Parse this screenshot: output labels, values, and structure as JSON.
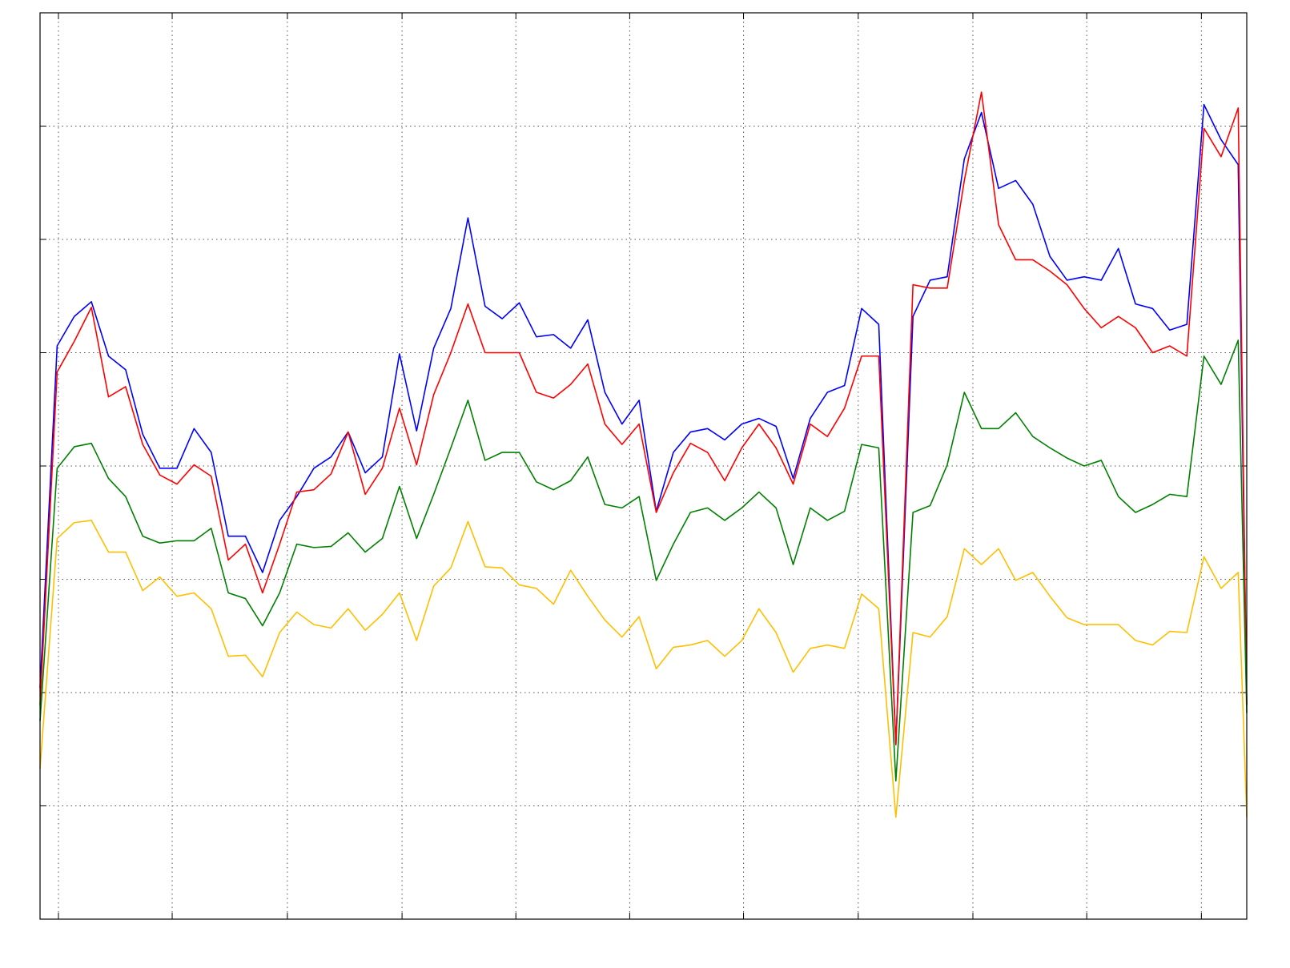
{
  "chart_data": {
    "type": "line",
    "grid": true,
    "x": [
      0,
      2,
      4,
      6,
      8,
      10,
      12,
      14,
      16,
      18,
      20,
      22,
      24,
      26,
      28,
      30,
      32,
      34,
      36,
      38,
      40,
      42,
      44,
      46,
      48,
      50,
      52,
      54,
      56,
      58,
      60,
      62,
      64,
      66,
      68,
      70,
      72,
      74,
      76,
      78,
      80,
      82,
      84,
      86,
      88,
      90,
      92,
      94,
      96,
      98,
      100,
      102,
      104,
      106,
      108,
      110,
      112,
      114,
      116,
      118,
      120,
      122,
      124,
      126,
      128,
      130,
      132,
      134,
      136,
      138,
      140,
      141
    ],
    "xlim": [
      0,
      141
    ],
    "xticks": [
      2.15,
      15.44,
      28.9,
      42.3,
      55.6,
      68.9,
      82.2,
      95.6,
      109,
      122.3,
      135.7
    ],
    "ylim": [
      0,
      8
    ],
    "yticks": [
      1,
      2,
      3,
      4,
      5,
      6,
      7
    ],
    "series": [
      {
        "color": "#0000ff",
        "values": [
          2.04,
          5.06,
          5.32,
          5.45,
          4.97,
          4.85,
          4.28,
          3.98,
          3.98,
          4.33,
          4.12,
          3.38,
          3.38,
          3.06,
          3.52,
          3.73,
          3.98,
          4.08,
          4.3,
          3.94,
          4.08,
          4.99,
          4.31,
          5.04,
          5.39,
          6.19,
          5.41,
          5.3,
          5.44,
          5.14,
          5.16,
          5.04,
          5.29,
          4.65,
          4.37,
          4.58,
          3.6,
          4.12,
          4.3,
          4.33,
          4.23,
          4.37,
          4.42,
          4.35,
          3.89,
          4.42,
          4.65,
          4.71,
          5.39,
          5.25,
          1.54,
          5.32,
          5.64,
          5.67,
          6.71,
          7.12,
          6.45,
          6.52,
          6.31,
          5.85,
          5.64,
          5.67,
          5.64,
          5.92,
          5.43,
          5.39,
          5.2,
          5.25,
          7.19,
          6.88,
          6.66,
          1.89
        ]
      },
      {
        "color": "#ff0000",
        "values": [
          1.89,
          4.83,
          5.1,
          5.4,
          4.61,
          4.7,
          4.19,
          3.92,
          3.84,
          4.01,
          3.91,
          3.17,
          3.31,
          2.88,
          3.31,
          3.77,
          3.79,
          3.93,
          4.3,
          3.75,
          3.98,
          4.51,
          4.01,
          4.63,
          5.0,
          5.43,
          5.0,
          5.0,
          5.0,
          4.65,
          4.6,
          4.72,
          4.9,
          4.37,
          4.19,
          4.37,
          3.59,
          3.94,
          4.2,
          4.12,
          3.87,
          4.16,
          4.37,
          4.16,
          3.84,
          4.37,
          4.26,
          4.51,
          4.97,
          4.97,
          1.54,
          5.6,
          5.57,
          5.57,
          6.52,
          7.3,
          6.13,
          5.82,
          5.82,
          5.72,
          5.6,
          5.39,
          5.22,
          5.32,
          5.22,
          5.0,
          5.06,
          4.97,
          6.98,
          6.73,
          7.16,
          1.89
        ]
      },
      {
        "color": "#008000",
        "values": [
          1.75,
          3.98,
          4.17,
          4.2,
          3.89,
          3.73,
          3.38,
          3.32,
          3.34,
          3.34,
          3.45,
          2.88,
          2.83,
          2.59,
          2.88,
          3.31,
          3.28,
          3.29,
          3.41,
          3.24,
          3.36,
          3.82,
          3.36,
          3.75,
          4.16,
          4.58,
          4.05,
          4.12,
          4.12,
          3.86,
          3.79,
          3.87,
          4.08,
          3.66,
          3.63,
          3.73,
          2.99,
          3.31,
          3.59,
          3.63,
          3.52,
          3.63,
          3.77,
          3.63,
          3.13,
          3.63,
          3.52,
          3.6,
          4.19,
          4.16,
          1.22,
          3.59,
          3.65,
          4.01,
          4.65,
          4.33,
          4.33,
          4.47,
          4.26,
          4.16,
          4.07,
          4.0,
          4.05,
          3.73,
          3.59,
          3.66,
          3.75,
          3.73,
          4.97,
          4.72,
          5.11,
          1.82
        ]
      },
      {
        "color": "#ffbf00",
        "values": [
          1.33,
          3.36,
          3.5,
          3.52,
          3.24,
          3.24,
          2.9,
          3.02,
          2.85,
          2.88,
          2.74,
          2.32,
          2.33,
          2.14,
          2.53,
          2.71,
          2.6,
          2.57,
          2.74,
          2.55,
          2.69,
          2.88,
          2.46,
          2.94,
          3.1,
          3.51,
          3.11,
          3.1,
          2.95,
          2.92,
          2.78,
          3.08,
          2.85,
          2.64,
          2.49,
          2.67,
          2.21,
          2.4,
          2.42,
          2.46,
          2.32,
          2.46,
          2.74,
          2.53,
          2.18,
          2.39,
          2.42,
          2.39,
          2.87,
          2.74,
          0.9,
          2.53,
          2.49,
          2.67,
          3.27,
          3.13,
          3.27,
          2.99,
          3.06,
          2.85,
          2.66,
          2.6,
          2.6,
          2.6,
          2.46,
          2.42,
          2.54,
          2.53,
          3.2,
          2.92,
          3.06,
          0.9
        ]
      }
    ]
  }
}
